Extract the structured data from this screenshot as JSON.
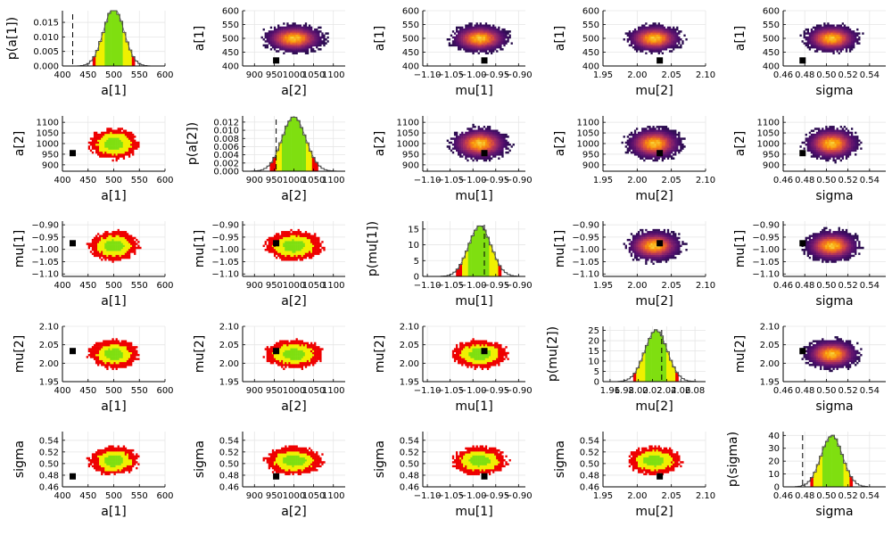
{
  "chart_data": {
    "type": "corner",
    "variables": [
      {
        "name": "a[1]",
        "xlabel": "a[1]",
        "ylabel": "a[1]",
        "diag_ylabel": "p(a[1])",
        "range": [
          400,
          600
        ],
        "ticks": [
          400,
          450,
          500,
          550,
          600
        ],
        "mean": 500,
        "sd": 20,
        "truth": 420,
        "diag_ylim": [
          0,
          0.019
        ],
        "diag_yticks": [
          0.0,
          0.005,
          0.01,
          0.015
        ],
        "diag_yticklabels": [
          "0.000",
          "0.005",
          "0.010",
          "0.015"
        ]
      },
      {
        "name": "a[2]",
        "xlabel": "a[2]",
        "ylabel": "a[2]",
        "diag_ylabel": "p(a[2])",
        "range": [
          870,
          1130
        ],
        "ticks": [
          900,
          950,
          1000,
          1050,
          1100
        ],
        "mean": 1000,
        "sd": 30,
        "truth": 955,
        "diag_ylim": [
          0,
          0.0135
        ],
        "diag_yticks": [
          0.0,
          0.002,
          0.004,
          0.006,
          0.008,
          0.01,
          0.012
        ],
        "diag_yticklabels": [
          "0.000",
          "0.002",
          "0.004",
          "0.006",
          "0.008",
          "0.010",
          "0.012"
        ]
      },
      {
        "name": "mu[1]",
        "xlabel": "mu[1]",
        "ylabel": "mu[1]",
        "diag_ylabel": "p(mu[1])",
        "range": [
          -1.11,
          -0.885
        ],
        "ticks": [
          -1.1,
          -1.05,
          -1.0,
          -0.95,
          -0.9
        ],
        "ticklabels": [
          "−1.10",
          "−1.05",
          "−1.00",
          "−0.95",
          "−0.90"
        ],
        "mean": -0.985,
        "sd": 0.025,
        "truth": -0.975,
        "diag_ylim": [
          0,
          17.5
        ],
        "diag_yticks": [
          0,
          5,
          10,
          15
        ],
        "diag_yticklabels": [
          "0",
          "5",
          "10",
          "15"
        ]
      },
      {
        "name": "mu[2]",
        "xlabel": "mu[2]",
        "ylabel": "mu[2]",
        "diag_ylabel": "p(mu[2])",
        "range": [
          1.95,
          2.1
        ],
        "ticks": [
          1.95,
          2.0,
          2.05,
          2.1
        ],
        "ticklabels": [
          "1.95",
          "2.00",
          "2.05",
          "2.10"
        ],
        "mean": 2.025,
        "sd": 0.016,
        "truth": 2.033,
        "diag_range": [
          1.95,
          2.095
        ],
        "diag_ticks": [
          1.96,
          1.98,
          2.0,
          2.02,
          2.04,
          2.06,
          2.08
        ],
        "diag_ticklabels": [
          "1.96",
          "1.98",
          "2.00",
          "2.02",
          "2.04",
          "2.06",
          "2.08"
        ],
        "diag_ylim": [
          0,
          27
        ],
        "diag_yticks": [
          0,
          5,
          10,
          15,
          20,
          25
        ],
        "diag_yticklabels": [
          "0",
          "5",
          "10",
          "15",
          "20",
          "25"
        ]
      },
      {
        "name": "sigma",
        "xlabel": "sigma",
        "ylabel": "sigma",
        "diag_ylabel": "p(sigma)",
        "range": [
          0.46,
          0.555
        ],
        "ticks": [
          0.46,
          0.48,
          0.5,
          0.52,
          0.54
        ],
        "ticklabels": [
          "0.46",
          "0.48",
          "0.50",
          "0.52",
          "0.54"
        ],
        "mean": 0.505,
        "sd": 0.01,
        "truth": 0.478,
        "diag_ylim": [
          0,
          43
        ],
        "diag_yticks": [
          0,
          10,
          20,
          30,
          40
        ],
        "diag_yticklabels": [
          "0",
          "10",
          "20",
          "30",
          "40"
        ]
      }
    ],
    "upper_triangle": "2d histogram (density)",
    "lower_triangle": "credible regions",
    "diagonal": "marginal histogram with credible bands",
    "credible_regions": {
      "inner": {
        "color": "#7fdf10",
        "sd_fraction": 0.95
      },
      "middle": {
        "color": "#f0f000",
        "sd_fraction": 1.65
      },
      "outer": {
        "color": "#ee0000",
        "sd_fraction": 2.0
      }
    },
    "truth_marker": {
      "style": "black square / dashed line",
      "color": "#000000"
    },
    "density_colormap": [
      "#1b0c41",
      "#4a0c6b",
      "#781c6d",
      "#a52c60",
      "#cf4446",
      "#ed6925",
      "#fb9b06",
      "#f7d13d"
    ],
    "grid": true
  }
}
